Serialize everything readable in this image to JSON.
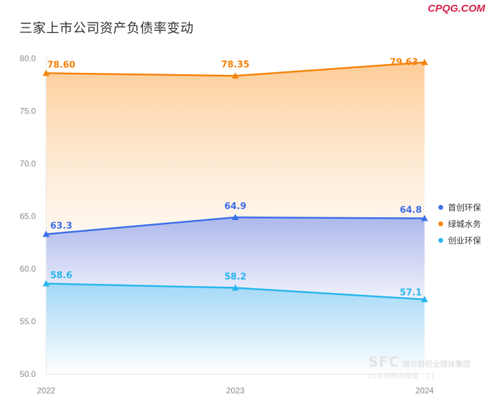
{
  "header": {
    "title": "三家上市公司资产负债率变动",
    "watermark": "CPQG.COM"
  },
  "footer_watermark": {
    "logo": "SFC",
    "org": "南方财经全媒体集团",
    "line2": "21世纪经济报道",
    "badge": "21"
  },
  "chart_data": {
    "type": "area",
    "title": "三家上市公司资产负债率变动",
    "xlabel": "",
    "ylabel": "",
    "x": [
      "2022",
      "2023",
      "2024"
    ],
    "ylim": [
      50,
      80
    ],
    "yticks": [
      "50.0",
      "55.0",
      "60.0",
      "65.0",
      "70.0",
      "75.0",
      "80.0"
    ],
    "grid": false,
    "legend_position": "right",
    "series": [
      {
        "name": "首创环保",
        "values": [
          63.3,
          64.9,
          64.8
        ],
        "labels": [
          "63.3",
          "64.9",
          "64.8"
        ],
        "color": "#3b6ee8"
      },
      {
        "name": "绿城水务",
        "values": [
          78.6,
          78.35,
          79.63
        ],
        "labels": [
          "78.60",
          "78.35",
          "79.63"
        ],
        "color": "#f5820a"
      },
      {
        "name": "创业环保",
        "values": [
          58.6,
          58.2,
          57.1
        ],
        "labels": [
          "58.6",
          "58.2",
          "57.1"
        ],
        "color": "#27b6ee"
      }
    ]
  }
}
